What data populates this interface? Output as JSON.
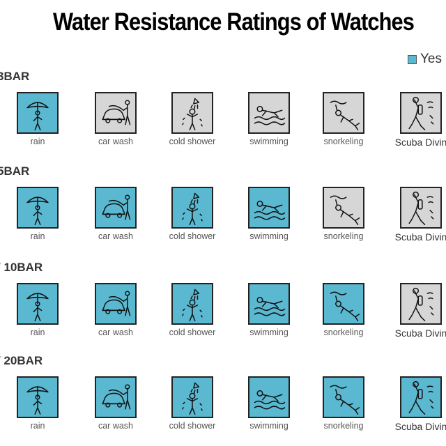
{
  "title": "Water Resistance Ratings of Watches",
  "legend": {
    "yes_label": "Yes",
    "yes_color": "#5ab8d0",
    "no_color": "#d6d6d6"
  },
  "activities": [
    {
      "label": "rain",
      "icon": "umbrella-person-icon"
    },
    {
      "label": "car wash",
      "icon": "car-wash-icon"
    },
    {
      "label": "cold shower",
      "icon": "shower-icon"
    },
    {
      "label": "swimming",
      "icon": "swimmer-icon"
    },
    {
      "label": "snorkeling",
      "icon": "snorkeler-icon"
    },
    {
      "label": "Scuba Divin",
      "icon": "scuba-diver-icon"
    }
  ],
  "rows": [
    {
      "label": "3BAR",
      "yes": [
        true,
        false,
        false,
        false,
        false,
        false
      ]
    },
    {
      "label": "5BAR",
      "yes": [
        true,
        true,
        true,
        true,
        false,
        false
      ]
    },
    {
      "label": "/ 10BAR",
      "yes": [
        true,
        true,
        true,
        true,
        true,
        false
      ]
    },
    {
      "label": "/ 20BAR",
      "yes": [
        true,
        true,
        true,
        true,
        true,
        true
      ]
    }
  ]
}
